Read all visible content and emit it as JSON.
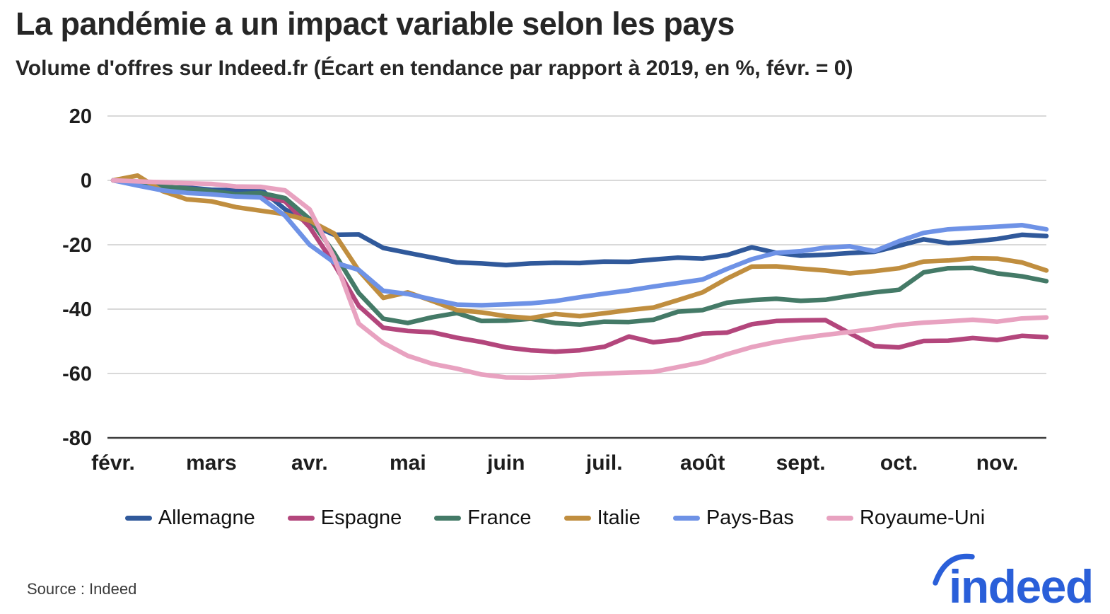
{
  "header": {
    "title": "La pandémie a un impact variable selon les pays",
    "subtitle": "Volume d'offres sur Indeed.fr (Écart en tendance par rapport à 2019, en %, févr. = 0)"
  },
  "footer": {
    "source": "Source : Indeed",
    "logo_text": "indeed",
    "logo_color": "#2a5fd9"
  },
  "legend": [
    {
      "label": "Allemagne",
      "color": "#30599b"
    },
    {
      "label": "Espagne",
      "color": "#b3467c"
    },
    {
      "label": "France",
      "color": "#447a67"
    },
    {
      "label": "Italie",
      "color": "#c08e3f"
    },
    {
      "label": "Pays-Bas",
      "color": "#6e92e6"
    },
    {
      "label": "Royaume-Uni",
      "color": "#e8a2c0"
    }
  ],
  "chart_data": {
    "type": "line",
    "title": "La pandémie a un impact variable selon les pays",
    "subtitle": "Volume d'offres sur Indeed.fr (Écart en tendance par rapport à 2019, en %, févr. = 0)",
    "x_labels": [
      "févr.",
      "mars",
      "avr.",
      "mai",
      "juin",
      "juil.",
      "août",
      "sept.",
      "oct.",
      "nov."
    ],
    "x_unit_note": "months since February, weekly samples",
    "x": [
      0,
      0.25,
      0.5,
      0.75,
      1,
      1.25,
      1.5,
      1.75,
      2,
      2.25,
      2.5,
      2.75,
      3,
      3.25,
      3.5,
      3.75,
      4,
      4.25,
      4.5,
      4.75,
      5,
      5.25,
      5.5,
      5.75,
      6,
      6.25,
      6.5,
      6.75,
      7,
      7.25,
      7.5,
      7.75,
      8,
      8.25,
      8.5,
      8.75,
      9,
      9.25,
      9.5
    ],
    "ylim": [
      -80,
      20
    ],
    "yticks": [
      20,
      0,
      -20,
      -40,
      -60,
      -80
    ],
    "grid": "horizontal",
    "legend_position": "bottom",
    "series": [
      {
        "name": "Allemagne",
        "values": [
          0,
          -1,
          -2.3,
          -2.2,
          -2.9,
          -3.1,
          -2.7,
          -9,
          -13.5,
          -16.9,
          -16.8,
          -21,
          -22.5,
          -24,
          -25.5,
          -25.8,
          -26.3,
          -25.8,
          -25.6,
          -25.7,
          -25.2,
          -25.3,
          -24.6,
          -24,
          -24.3,
          -23.2,
          -20.8,
          -22.5,
          -23.4,
          -23.1,
          -22.6,
          -22.2,
          -20.3,
          -18.3,
          -19.5,
          -19,
          -18.2,
          -16.9,
          -17.3
        ]
      },
      {
        "name": "Espagne",
        "values": [
          0,
          -1.2,
          -2.6,
          -3.1,
          -4,
          -4.6,
          -4.9,
          -6.5,
          -14.5,
          -26,
          -39,
          -45.8,
          -46.8,
          -47.2,
          -48.9,
          -50.2,
          -51.9,
          -52.8,
          -53.2,
          -52.8,
          -51.7,
          -48.5,
          -50.3,
          -49.5,
          -47.6,
          -47.3,
          -44.7,
          -43.7,
          -43.5,
          -43.4,
          -47.5,
          -51.5,
          -51.9,
          -49.9,
          -49.8,
          -49,
          -49.6,
          -48.3,
          -48.7
        ]
      },
      {
        "name": "France",
        "values": [
          0,
          -0.8,
          -1.9,
          -2.5,
          -3.3,
          -4.3,
          -3.9,
          -5.5,
          -12,
          -22.5,
          -35,
          -43,
          -44.3,
          -42.5,
          -41.2,
          -43.7,
          -43.6,
          -43,
          -44.3,
          -44.8,
          -43.9,
          -44,
          -43.3,
          -40.8,
          -40.3,
          -38,
          -37.2,
          -36.8,
          -37.4,
          -37.1,
          -35.9,
          -34.8,
          -34,
          -28.6,
          -27.3,
          -27.2,
          -28.9,
          -29.8,
          -31.3
        ]
      },
      {
        "name": "Italie",
        "values": [
          0,
          1.5,
          -3.3,
          -5.9,
          -6.5,
          -8.3,
          -9.4,
          -10.5,
          -12.5,
          -16.5,
          -28,
          -36.5,
          -34.8,
          -37.5,
          -40.3,
          -41,
          -42.2,
          -42.8,
          -41.5,
          -42.2,
          -41.3,
          -40.3,
          -39.5,
          -37.2,
          -34.8,
          -30.5,
          -26.8,
          -26.7,
          -27.4,
          -28,
          -28.9,
          -28.2,
          -27.3,
          -25.2,
          -24.9,
          -24.2,
          -24.3,
          -25.5,
          -28
        ]
      },
      {
        "name": "Pays-Bas",
        "values": [
          0,
          -1.6,
          -3.1,
          -3.9,
          -4.3,
          -5,
          -5.3,
          -11,
          -20,
          -25.5,
          -27.8,
          -34.3,
          -35.3,
          -37,
          -38.6,
          -38.8,
          -38.5,
          -38.2,
          -37.5,
          -36.3,
          -35.2,
          -34.2,
          -33,
          -31.9,
          -30.8,
          -27.5,
          -24.5,
          -22.5,
          -22,
          -20.9,
          -20.5,
          -22,
          -18.9,
          -16.3,
          -15.2,
          -14.8,
          -14.4,
          -13.9,
          -15.2
        ]
      },
      {
        "name": "Royaume-Uni",
        "values": [
          0,
          -0.3,
          -0.6,
          -0.9,
          -1.1,
          -1.9,
          -2,
          -3.1,
          -9,
          -24,
          -44.5,
          -50.5,
          -54.5,
          -57,
          -58.5,
          -60.3,
          -61.2,
          -61.3,
          -61,
          -60.3,
          -60,
          -59.7,
          -59.5,
          -58,
          -56.5,
          -54,
          -51.8,
          -50.2,
          -49,
          -48,
          -47.1,
          -46.1,
          -44.9,
          -44.2,
          -43.8,
          -43.3,
          -43.9,
          -42.9,
          -42.6
        ]
      }
    ]
  }
}
